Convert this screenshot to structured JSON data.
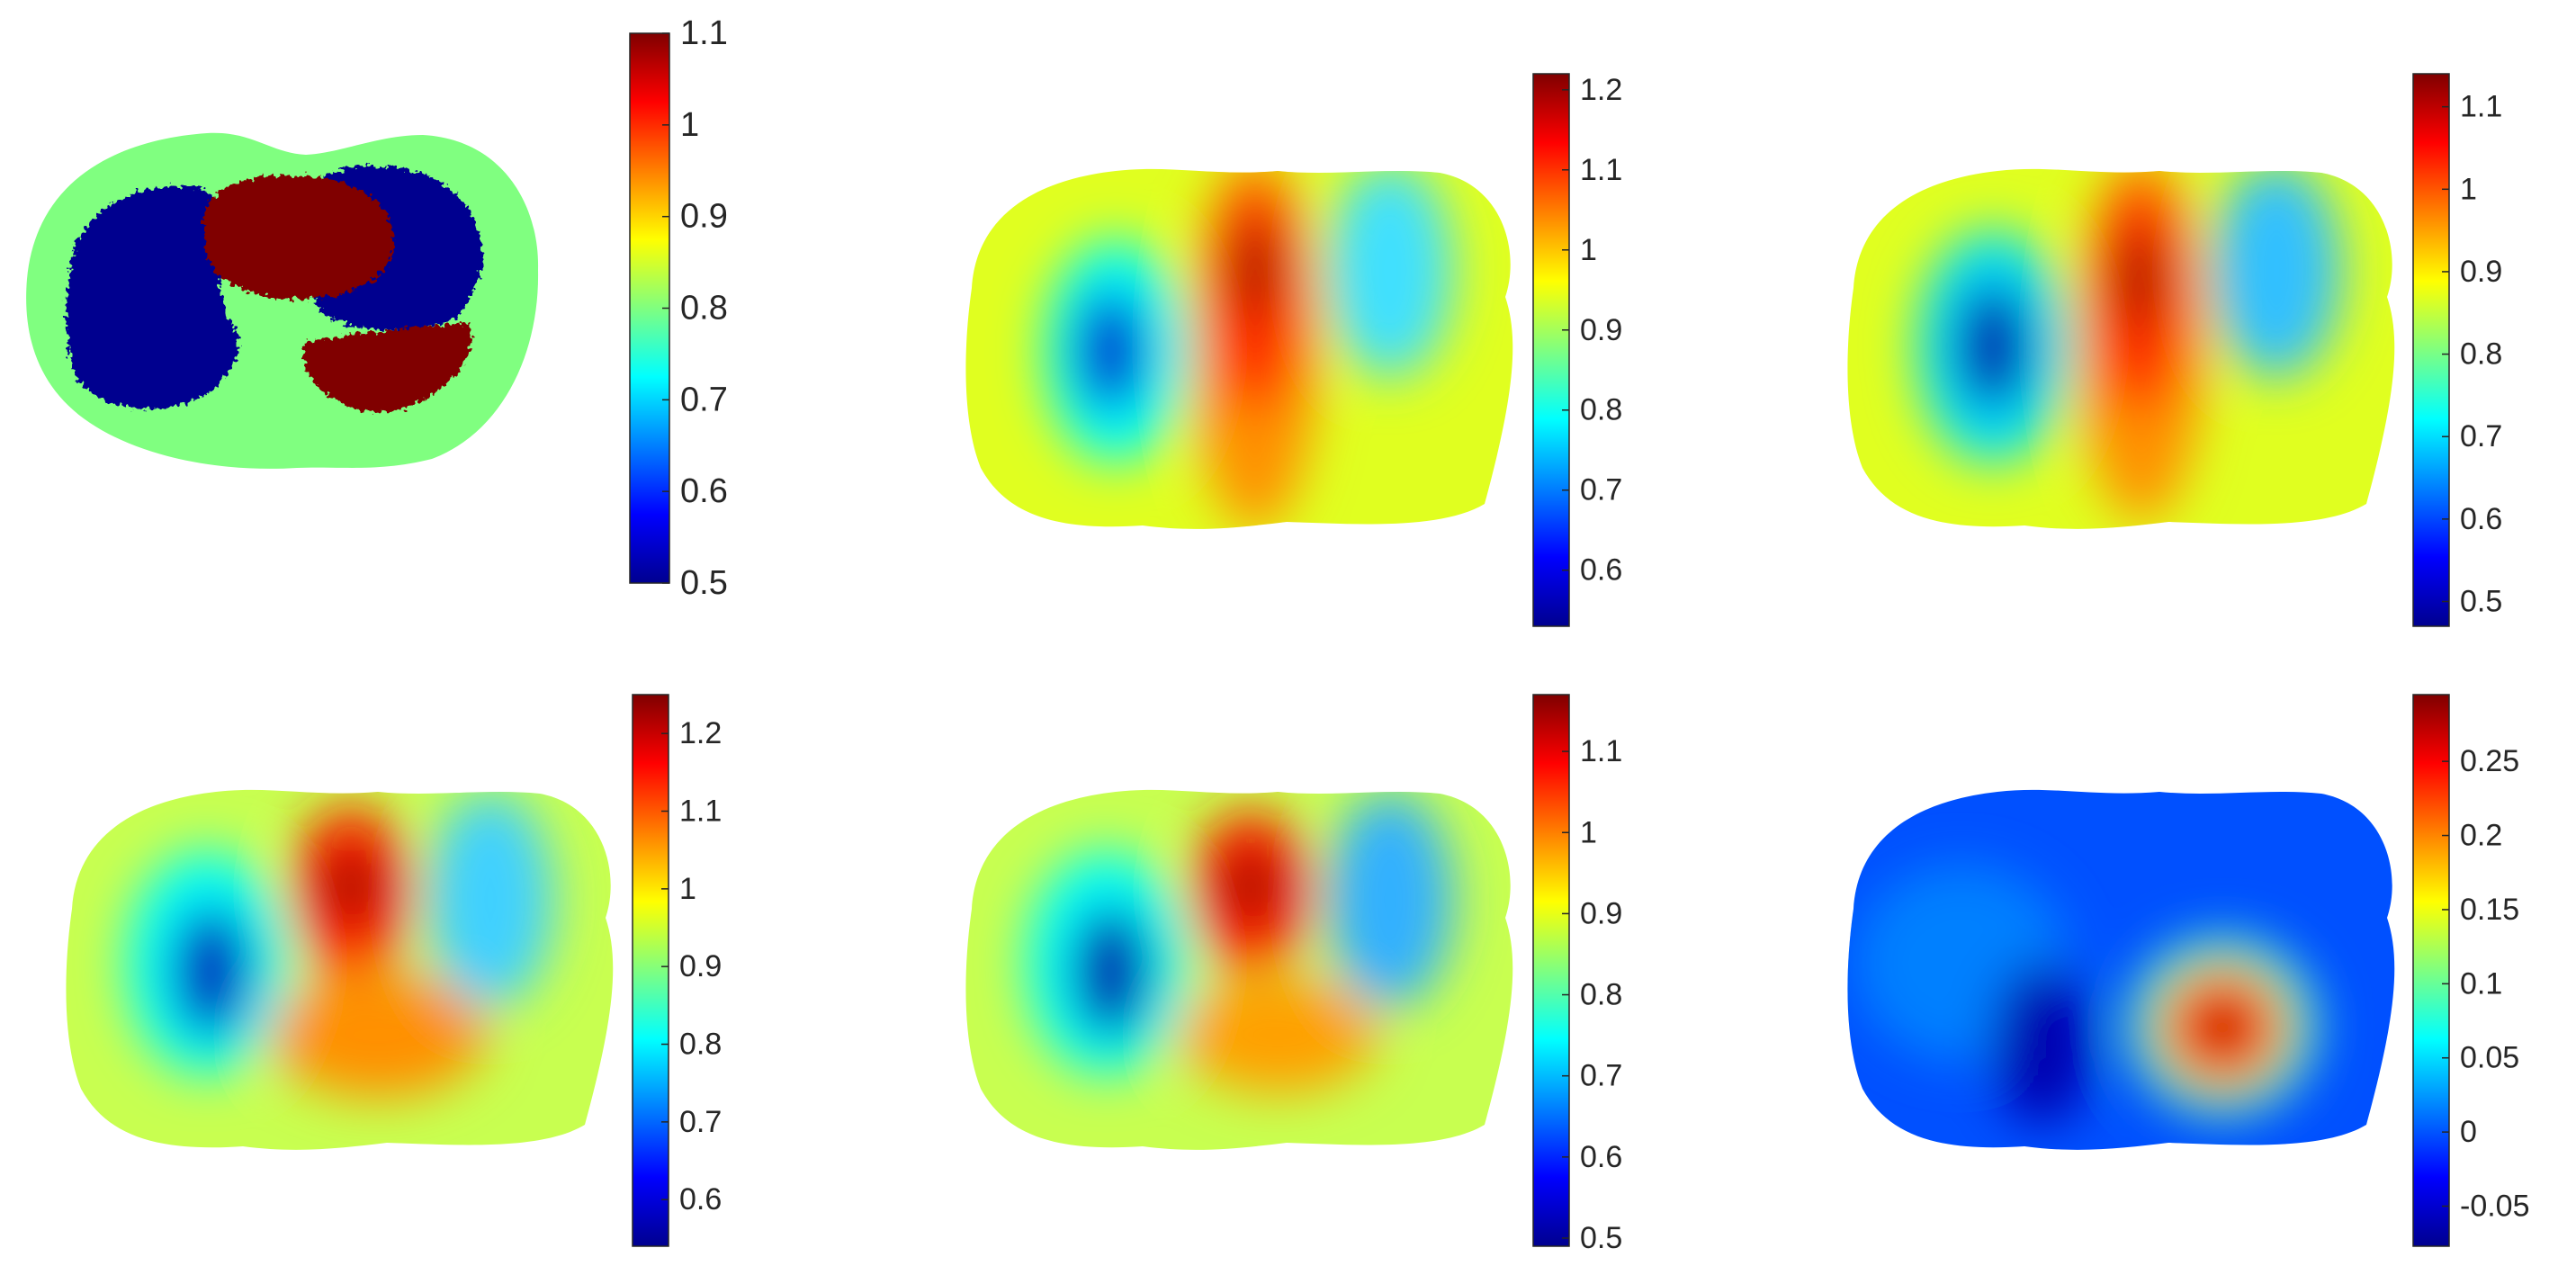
{
  "colormap": "jet",
  "chart_data": [
    {
      "type": "heatmap",
      "title": "",
      "xlabel": "",
      "ylabel": "",
      "grid": false,
      "content": "piecewise-constant phantom: background 0.8, two low regions 0.5, two high regions 1.1",
      "colorbar": {
        "min": 0.5,
        "max": 1.1,
        "ticks": [
          0.5,
          0.6,
          0.7,
          0.8,
          0.9,
          1,
          1.1
        ],
        "tick_labels": [
          "0.5",
          "0.6",
          "0.7",
          "0.8",
          "0.9",
          "1",
          "1.1"
        ]
      }
    },
    {
      "type": "heatmap",
      "title": "",
      "xlabel": "",
      "ylabel": "",
      "grid": false,
      "colorbar": {
        "min": 0.53,
        "max": 1.22,
        "ticks": [
          0.6,
          0.7,
          0.8,
          0.9,
          1,
          1.1,
          1.2
        ],
        "tick_labels": [
          "0.6",
          "0.7",
          "0.8",
          "0.9",
          "1",
          "1.1",
          "1.2"
        ]
      }
    },
    {
      "type": "heatmap",
      "title": "",
      "xlabel": "",
      "ylabel": "",
      "grid": false,
      "colorbar": {
        "min": 0.47,
        "max": 1.14,
        "ticks": [
          0.5,
          0.6,
          0.7,
          0.8,
          0.9,
          1,
          1.1
        ],
        "tick_labels": [
          "0.5",
          "0.6",
          "0.7",
          "0.8",
          "0.9",
          "1",
          "1.1"
        ]
      }
    },
    {
      "type": "heatmap",
      "title": "",
      "xlabel": "",
      "ylabel": "",
      "grid": false,
      "colorbar": {
        "min": 0.54,
        "max": 1.25,
        "ticks": [
          0.6,
          0.7,
          0.8,
          0.9,
          1,
          1.1,
          1.2
        ],
        "tick_labels": [
          "0.6",
          "0.7",
          "0.8",
          "0.9",
          "1",
          "1.1",
          "1.2"
        ]
      }
    },
    {
      "type": "heatmap",
      "title": "",
      "xlabel": "",
      "ylabel": "",
      "grid": false,
      "colorbar": {
        "min": 0.49,
        "max": 1.17,
        "ticks": [
          0.5,
          0.6,
          0.7,
          0.8,
          0.9,
          1,
          1.1
        ],
        "tick_labels": [
          "0.5",
          "0.6",
          "0.7",
          "0.8",
          "0.9",
          "1",
          "1.1"
        ]
      }
    },
    {
      "type": "heatmap",
      "title": "",
      "xlabel": "",
      "ylabel": "",
      "grid": false,
      "colorbar": {
        "min": -0.077,
        "max": 0.295,
        "ticks": [
          -0.05,
          0,
          0.05,
          0.1,
          0.15,
          0.2,
          0.25
        ],
        "tick_labels": [
          "-0.05",
          "0",
          "0.05",
          "0.1",
          "0.15",
          "0.2",
          "0.25"
        ]
      }
    }
  ]
}
